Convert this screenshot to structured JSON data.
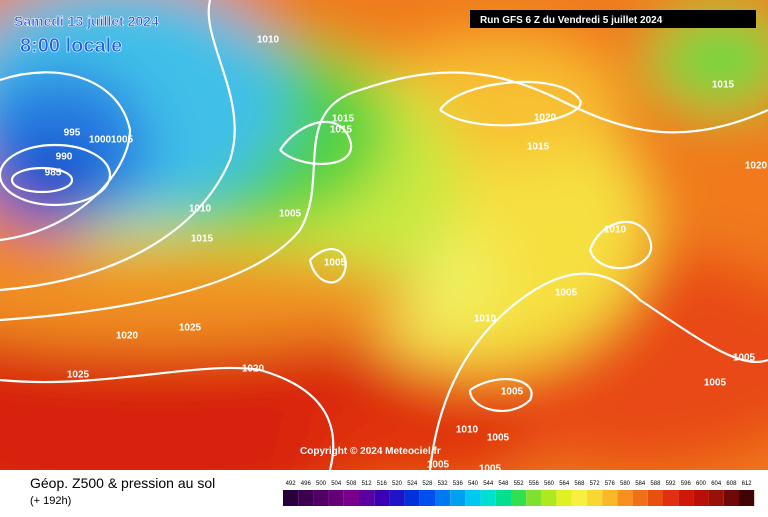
{
  "header": {
    "date": "Samedi 13 juillet 2024",
    "time": "8:00 locale",
    "run": "Run GFS 6 Z du Vendredi 5 juillet 2024",
    "copyright": "Copyright © 2024 Meteociel.fr"
  },
  "footer": {
    "title": "Géop. Z500 & pression au sol",
    "lead": "(+ 192h)"
  },
  "isobar_labels": [
    "1010",
    "995",
    "1000",
    "1005",
    "990",
    "985",
    "1015",
    "1015",
    "1020",
    "1015",
    "1015",
    "1020",
    "1010",
    "1005",
    "1015",
    "1010",
    "1005",
    "1005",
    "1025",
    "1020",
    "1010",
    "1005",
    "1020",
    "1025",
    "1005",
    "1005",
    "1010",
    "1005",
    "1005",
    "1005"
  ],
  "scale_labels": [
    "492",
    "496",
    "500",
    "504",
    "508",
    "512",
    "516",
    "520",
    "524",
    "528",
    "532",
    "536",
    "540",
    "544",
    "548",
    "552",
    "556",
    "560",
    "564",
    "568",
    "572",
    "576",
    "580",
    "584",
    "588",
    "592",
    "596",
    "600",
    "604",
    "608",
    "612"
  ]
}
